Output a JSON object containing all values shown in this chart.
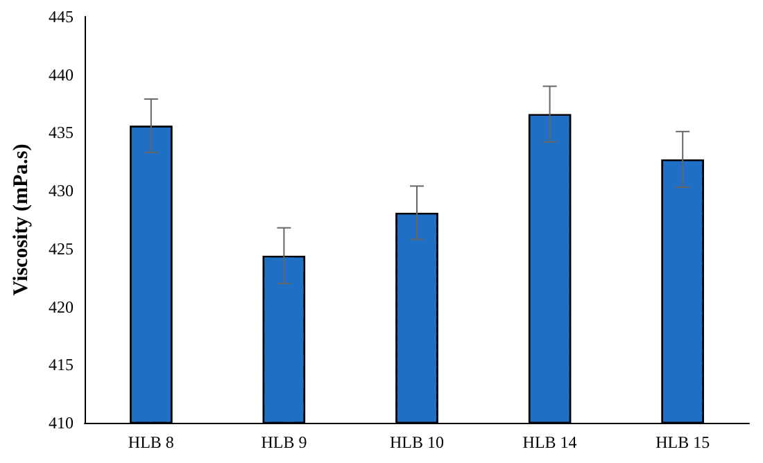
{
  "chart_data": {
    "type": "bar",
    "ylabel": "Viscosity (mPa.s)",
    "categories": [
      "HLB 8",
      "HLB 9",
      "HLB 10",
      "HLB 14",
      "HLB 15"
    ],
    "values": [
      435.6,
      424.4,
      428.1,
      436.6,
      432.7
    ],
    "errors": [
      2.3,
      2.4,
      2.3,
      2.4,
      2.4
    ],
    "colors": [
      "#1f6fc5",
      "#1f6fc5",
      "#1f6fc5",
      "#1f6fc5",
      "#1f6fc5"
    ],
    "ylim": [
      410,
      445
    ],
    "yticks": [
      410,
      415,
      420,
      425,
      430,
      435,
      440,
      445
    ],
    "grid": false
  }
}
